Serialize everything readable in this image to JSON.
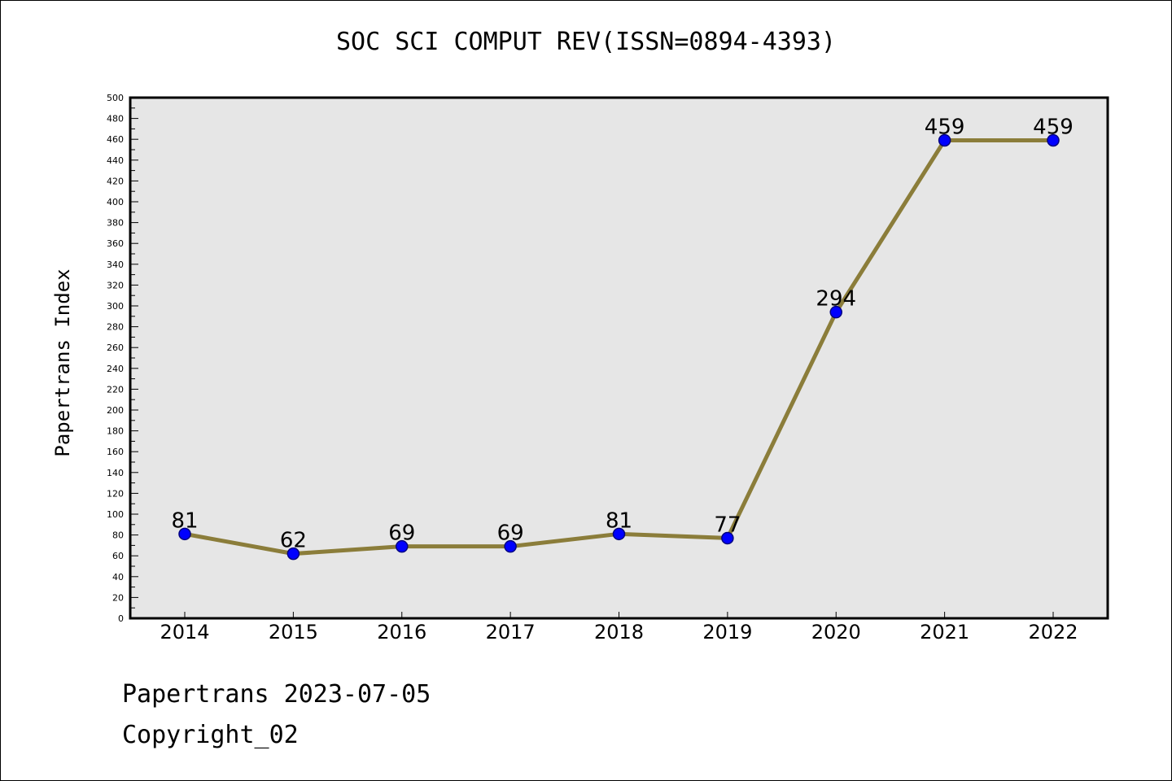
{
  "title": "SOC SCI COMPUT REV(ISSN=0894-4393)",
  "footer": {
    "date_line": "Papertrans 2023-07-05",
    "copyright_line": "Copyright_02"
  },
  "colors": {
    "plot_background": "#e6e6e6",
    "line": "#8b7d3a",
    "marker_fill": "#0000ff",
    "marker_stroke": "#000080",
    "axis": "#000000"
  },
  "chart_data": {
    "type": "line",
    "title": "SOC SCI COMPUT REV(ISSN=0894-4393)",
    "xlabel": "",
    "ylabel": "Papertrans Index",
    "categories": [
      "2014",
      "2015",
      "2016",
      "2017",
      "2018",
      "2019",
      "2020",
      "2021",
      "2022"
    ],
    "series": [
      {
        "values": [
          81,
          62,
          69,
          69,
          81,
          77,
          294,
          459,
          459
        ]
      }
    ],
    "data_labels": [
      "81",
      "62",
      "69",
      "69",
      "81",
      "77",
      "294",
      "459",
      "459"
    ],
    "ylim": [
      0,
      500
    ],
    "y_major_step": 20,
    "y_tick_labels": [
      "0",
      "20",
      "40",
      "60",
      "80",
      "100",
      "120",
      "140",
      "160",
      "180",
      "200",
      "220",
      "240",
      "260",
      "280",
      "300",
      "320",
      "340",
      "360",
      "380",
      "400",
      "420",
      "440",
      "460",
      "480",
      "500"
    ],
    "grid": false,
    "legend": "none"
  }
}
